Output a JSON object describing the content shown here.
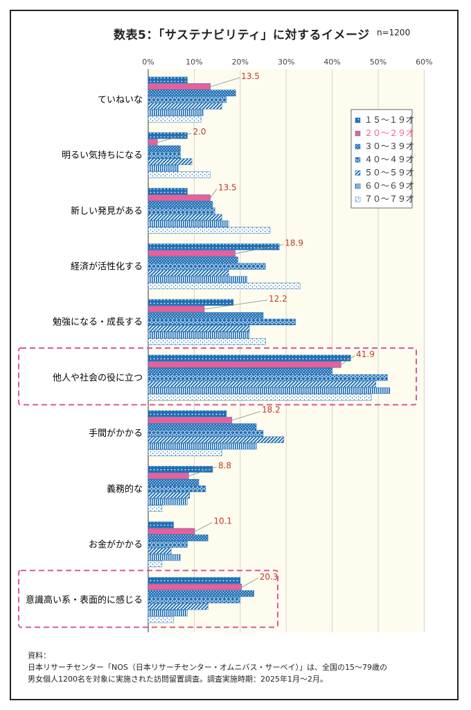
{
  "title": "数表5：「サステナビリティ」に対するイメージ",
  "sample_size": "n=1200",
  "source": {
    "heading": "資料：",
    "lines": [
      "日本リサーチセンター「NOS（日本リサーチセンター・オムニバス・サーベイ）」は、全国の15～79歳の",
      "男女個人1200名を対象に実施された訪問留置調査。調査実施時期：2025年1月～2月。"
    ]
  },
  "colors": {
    "blue": "#1f6fb5",
    "pink": "#e8609a",
    "callout": "#d9579a",
    "value_label": "#c0392b",
    "plot_bg": "#fdfcef",
    "grid": "#d6d3c4"
  },
  "chart_data": {
    "type": "bar",
    "orientation": "horizontal",
    "x_unit": "%",
    "xlim": [
      0,
      60
    ],
    "xticks": [
      "0%",
      "10%",
      "20%",
      "30%",
      "40%",
      "50%",
      "60%"
    ],
    "grid": true,
    "legend_position": "top-right",
    "categories": [
      "ていねいな",
      "明るい気持ちになる",
      "新しい発見がある",
      "経済が活性化する",
      "勉強になる・成長する",
      "他人や社会の役に立つ",
      "手間がかかる",
      "義務的な",
      "お金がかかる",
      "意識高い系・表面的に感じる"
    ],
    "highlighted_categories": [
      "他人や社会の役に立つ",
      "意識高い系・表面的に感じる"
    ],
    "series": [
      {
        "name": "１５～１９才",
        "pattern": "dots-blue",
        "values": [
          8.5,
          8.5,
          8.5,
          28.5,
          18.5,
          44.0,
          17.0,
          14.0,
          5.5,
          20.0
        ]
      },
      {
        "name": "２０～２９才",
        "pattern": "solid-pink",
        "values": [
          13.5,
          2.0,
          13.5,
          18.9,
          12.2,
          41.9,
          18.2,
          8.8,
          10.1,
          20.3
        ]
      },
      {
        "name": "３０～３９才",
        "pattern": "checker-blue",
        "values": [
          19.0,
          7.0,
          14.0,
          19.5,
          25.0,
          40.0,
          23.5,
          11.0,
          13.0,
          23.0
        ]
      },
      {
        "name": "４０～４９才",
        "pattern": "diamond-blue",
        "values": [
          17.0,
          7.0,
          14.5,
          25.5,
          32.0,
          52.0,
          25.0,
          12.5,
          8.5,
          20.0
        ]
      },
      {
        "name": "５０～５９才",
        "pattern": "diagonal-blue",
        "values": [
          16.0,
          9.5,
          16.0,
          17.5,
          22.0,
          49.5,
          29.5,
          9.0,
          5.0,
          13.0
        ]
      },
      {
        "name": "６０～６９才",
        "pattern": "vertical-blue",
        "values": [
          12.0,
          6.5,
          17.5,
          21.5,
          22.0,
          52.5,
          23.5,
          8.5,
          7.0,
          8.5
        ]
      },
      {
        "name": "７０～７９才",
        "pattern": "sparse-dots",
        "values": [
          11.5,
          13.5,
          26.5,
          33.0,
          25.5,
          48.5,
          16.0,
          3.0,
          3.0,
          5.5
        ]
      }
    ],
    "labeled_series": "２０～２９才",
    "data_labels": [
      "13.5",
      "2.0",
      "13.5",
      "18.9",
      "12.2",
      "41.9",
      "18.2",
      "8.8",
      "10.1",
      "20.3"
    ]
  }
}
